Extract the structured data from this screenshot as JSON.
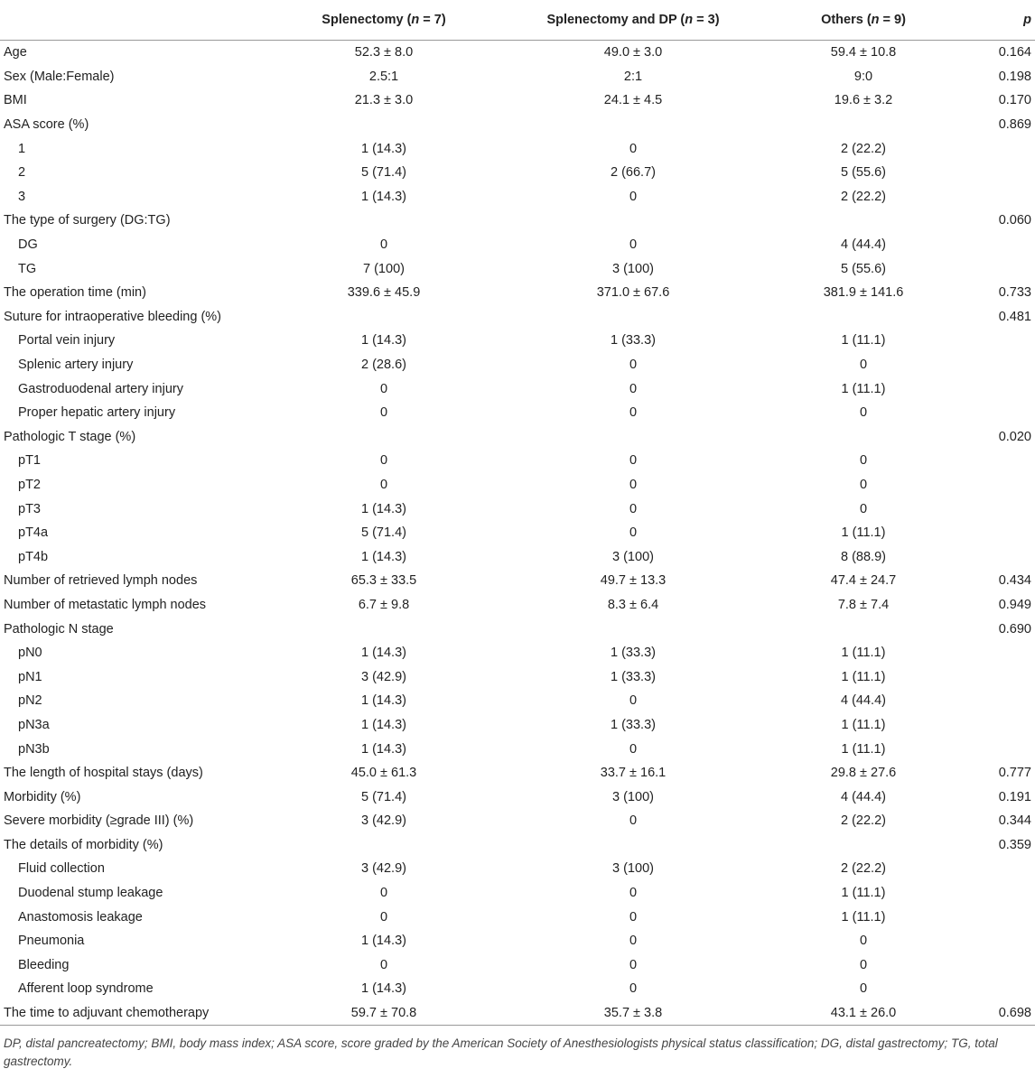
{
  "table": {
    "headers": [
      {
        "before": "Splenectomy (",
        "italic": "n",
        "after": " = 7)"
      },
      {
        "before": "Splenectomy and DP (",
        "italic": "n",
        "after": " = 3)"
      },
      {
        "before": "Others (",
        "italic": "n",
        "after": " = 9)"
      },
      {
        "italic": "p"
      }
    ],
    "rows": [
      {
        "label": "Age",
        "cells": [
          "52.3 ± 8.0",
          "49.0 ± 3.0",
          "59.4 ± 10.8"
        ],
        "p": "0.164"
      },
      {
        "label": "Sex (Male:Female)",
        "cells": [
          "2.5:1",
          "2:1",
          "9:0"
        ],
        "p": "0.198"
      },
      {
        "label": "BMI",
        "cells": [
          "21.3 ± 3.0",
          "24.1 ± 4.5",
          "19.6 ± 3.2"
        ],
        "p": "0.170"
      },
      {
        "label": "ASA score (%)",
        "p": "0.869",
        "items": [
          {
            "label": "1",
            "cells": [
              "1 (14.3)",
              "0",
              "2 (22.2)"
            ]
          },
          {
            "label": "2",
            "cells": [
              "5 (71.4)",
              "2 (66.7)",
              "5 (55.6)"
            ]
          },
          {
            "label": "3",
            "cells": [
              "1 (14.3)",
              "0",
              "2 (22.2)"
            ]
          }
        ]
      },
      {
        "label": "The type of surgery (DG:TG)",
        "p": "0.060",
        "items": [
          {
            "label": "DG",
            "cells": [
              "0",
              "0",
              "4 (44.4)"
            ]
          },
          {
            "label": "TG",
            "cells": [
              "7 (100)",
              "3 (100)",
              "5 (55.6)"
            ]
          }
        ]
      },
      {
        "label": "The operation time (min)",
        "cells": [
          "339.6 ± 45.9",
          "371.0 ± 67.6",
          "381.9 ± 141.6"
        ],
        "p": "0.733"
      },
      {
        "label": "Suture for intraoperative bleeding (%)",
        "p": "0.481",
        "items": [
          {
            "label": "Portal vein injury",
            "cells": [
              "1 (14.3)",
              "1 (33.3)",
              "1 (11.1)"
            ]
          },
          {
            "label": "Splenic artery injury",
            "cells": [
              "2 (28.6)",
              "0",
              "0"
            ]
          },
          {
            "label": "Gastroduodenal artery injury",
            "cells": [
              "0",
              "0",
              "1 (11.1)"
            ]
          },
          {
            "label": "Proper hepatic artery injury",
            "cells": [
              "0",
              "0",
              "0"
            ]
          }
        ]
      },
      {
        "label": "Pathologic T stage (%)",
        "p": "0.020",
        "items": [
          {
            "label": "pT1",
            "cells": [
              "0",
              "0",
              "0"
            ]
          },
          {
            "label": "pT2",
            "cells": [
              "0",
              "0",
              "0"
            ]
          },
          {
            "label": "pT3",
            "cells": [
              "1 (14.3)",
              "0",
              "0"
            ]
          },
          {
            "label": "pT4a",
            "cells": [
              "5 (71.4)",
              "0",
              "1 (11.1)"
            ]
          },
          {
            "label": "pT4b",
            "cells": [
              "1 (14.3)",
              "3 (100)",
              "8 (88.9)"
            ]
          }
        ]
      },
      {
        "label": "Number of retrieved lymph nodes",
        "cells": [
          "65.3 ± 33.5",
          "49.7 ± 13.3",
          "47.4 ± 24.7"
        ],
        "p": "0.434"
      },
      {
        "label": "Number of metastatic lymph nodes",
        "cells": [
          "6.7 ± 9.8",
          "8.3 ± 6.4",
          "7.8 ± 7.4"
        ],
        "p": "0.949"
      },
      {
        "label": "Pathologic N stage",
        "p": "0.690",
        "items": [
          {
            "label": "pN0",
            "cells": [
              "1 (14.3)",
              "1 (33.3)",
              "1 (11.1)"
            ]
          },
          {
            "label": "pN1",
            "cells": [
              "3 (42.9)",
              "1 (33.3)",
              "1 (11.1)"
            ]
          },
          {
            "label": "pN2",
            "cells": [
              "1 (14.3)",
              "0",
              "4 (44.4)"
            ]
          },
          {
            "label": "pN3a",
            "cells": [
              "1 (14.3)",
              "1 (33.3)",
              "1 (11.1)"
            ]
          },
          {
            "label": "pN3b",
            "cells": [
              "1 (14.3)",
              "0",
              "1 (11.1)"
            ]
          }
        ]
      },
      {
        "label": "The length of hospital stays (days)",
        "cells": [
          "45.0 ± 61.3",
          "33.7 ± 16.1",
          "29.8 ± 27.6"
        ],
        "p": "0.777"
      },
      {
        "label": "Morbidity (%)",
        "cells": [
          "5 (71.4)",
          "3 (100)",
          "4 (44.4)"
        ],
        "p": "0.191"
      },
      {
        "label": "Severe morbidity (≥grade III) (%)",
        "cells": [
          "3 (42.9)",
          "0",
          "2 (22.2)"
        ],
        "p": "0.344"
      },
      {
        "label": "The details of morbidity (%)",
        "p": "0.359",
        "items": [
          {
            "label": "Fluid collection",
            "cells": [
              "3 (42.9)",
              "3 (100)",
              "2 (22.2)"
            ]
          },
          {
            "label": "Duodenal stump leakage",
            "cells": [
              "0",
              "0",
              "1 (11.1)"
            ]
          },
          {
            "label": "Anastomosis leakage",
            "cells": [
              "0",
              "0",
              "1 (11.1)"
            ]
          },
          {
            "label": "Pneumonia",
            "cells": [
              "1 (14.3)",
              "0",
              "0"
            ]
          },
          {
            "label": "Bleeding",
            "cells": [
              "0",
              "0",
              "0"
            ]
          },
          {
            "label": "Afferent loop syndrome",
            "cells": [
              "1 (14.3)",
              "0",
              "0"
            ]
          }
        ]
      },
      {
        "label": "The time to adjuvant chemotherapy",
        "cells": [
          "59.7 ± 70.8",
          "35.7 ± 3.8",
          "43.1 ± 26.0"
        ],
        "p": "0.698"
      }
    ],
    "footnote": "DP, distal pancreatectomy; BMI, body mass index; ASA score, score graded by the American Society of Anesthesiologists physical status classification; DG, distal gastrectomy; TG, total gastrectomy."
  }
}
